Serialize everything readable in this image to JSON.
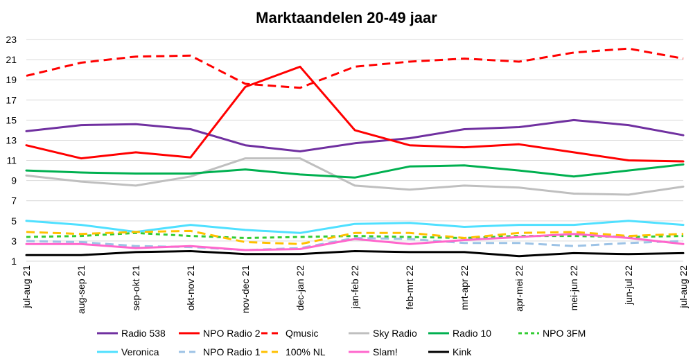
{
  "chart_data": {
    "type": "line",
    "title": "Marktaandelen 20-49 jaar",
    "xlabel": "",
    "ylabel": "",
    "ylim": [
      1,
      23
    ],
    "yticks": [
      1,
      3,
      5,
      7,
      9,
      11,
      13,
      15,
      17,
      19,
      21,
      23
    ],
    "grid": "horizontal",
    "legend_position": "bottom",
    "categories": [
      "jul-aug 21",
      "aug-sep 21",
      "sep-okt 21",
      "okt-nov 21",
      "nov-dec 21",
      "dec-jan 22",
      "jan-feb 22",
      "feb-mrt 22",
      "mrt-apr 22",
      "apr-mei 22",
      "mei-jun 22",
      "jun-jul 22",
      "jul-aug 22"
    ],
    "series": [
      {
        "name": "Radio 538",
        "color": "#7030a0",
        "dash": "solid",
        "values": [
          13.9,
          14.5,
          14.6,
          14.1,
          12.5,
          11.9,
          12.7,
          13.2,
          14.1,
          14.3,
          15.0,
          14.5,
          13.5
        ]
      },
      {
        "name": "NPO Radio 2",
        "color": "#ff0000",
        "dash": "solid",
        "values": [
          12.5,
          11.2,
          11.8,
          11.3,
          18.3,
          20.3,
          14.0,
          12.5,
          12.3,
          12.6,
          11.8,
          11.0,
          10.9
        ]
      },
      {
        "name": "Qmusic",
        "color": "#ff0000",
        "dash": "dashed",
        "values": [
          19.4,
          20.7,
          21.3,
          21.4,
          18.6,
          18.2,
          20.3,
          20.8,
          21.1,
          20.8,
          21.7,
          22.1,
          21.1
        ]
      },
      {
        "name": "Sky Radio",
        "color": "#bfbfbf",
        "dash": "solid",
        "values": [
          9.5,
          8.9,
          8.5,
          9.4,
          11.2,
          11.2,
          8.5,
          8.1,
          8.5,
          8.3,
          7.7,
          7.6,
          8.4
        ]
      },
      {
        "name": "Radio 10",
        "color": "#00b050",
        "dash": "solid",
        "values": [
          10.0,
          9.8,
          9.7,
          9.7,
          10.1,
          9.6,
          9.3,
          10.4,
          10.5,
          10.0,
          9.4,
          10.0,
          10.6
        ]
      },
      {
        "name": "NPO 3FM",
        "color": "#33cc33",
        "dash": "dotted",
        "values": [
          3.4,
          3.5,
          3.8,
          3.5,
          3.3,
          3.4,
          3.5,
          3.4,
          3.3,
          3.5,
          3.5,
          3.4,
          3.5
        ]
      },
      {
        "name": "Veronica",
        "color": "#4fe0ff",
        "dash": "solid",
        "values": [
          5.0,
          4.6,
          3.9,
          4.6,
          4.1,
          3.8,
          4.7,
          4.8,
          4.4,
          4.6,
          4.6,
          5.0,
          4.6
        ]
      },
      {
        "name": "NPO Radio 1",
        "color": "#9dc3e6",
        "dash": "dashed",
        "values": [
          3.0,
          2.9,
          2.5,
          2.4,
          2.1,
          2.3,
          3.3,
          3.2,
          2.8,
          2.8,
          2.5,
          2.8,
          3.0
        ]
      },
      {
        "name": "100% NL",
        "color": "#ffc000",
        "dash": "dashed",
        "values": [
          3.9,
          3.7,
          3.9,
          4.0,
          2.9,
          2.7,
          3.8,
          3.8,
          3.3,
          3.8,
          3.9,
          3.5,
          3.7
        ]
      },
      {
        "name": "Slam!",
        "color": "#ff66cc",
        "dash": "solid",
        "values": [
          2.7,
          2.7,
          2.3,
          2.5,
          2.1,
          2.2,
          3.2,
          2.7,
          3.1,
          3.4,
          3.7,
          3.3,
          2.7
        ]
      },
      {
        "name": "Kink",
        "color": "#000000",
        "dash": "solid",
        "values": [
          1.6,
          1.6,
          1.9,
          2.0,
          1.7,
          1.7,
          2.0,
          1.9,
          1.9,
          1.5,
          1.8,
          1.7,
          1.8
        ]
      }
    ]
  }
}
